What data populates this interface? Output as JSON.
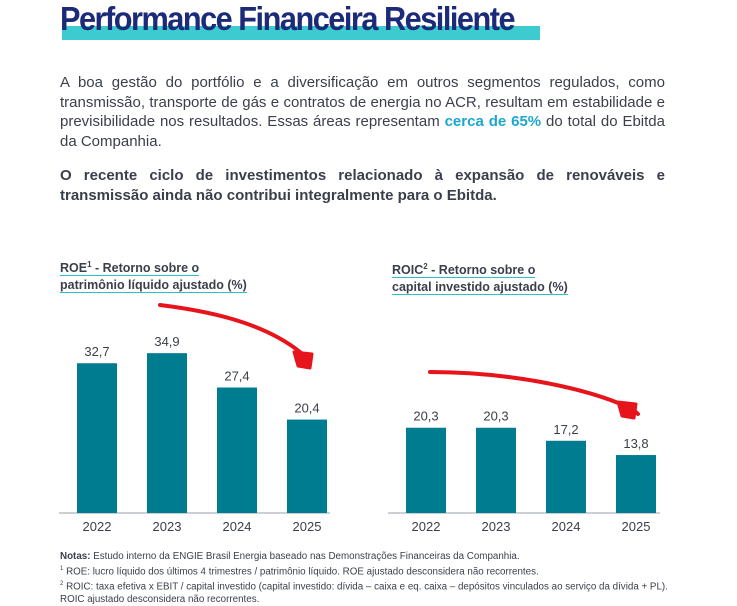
{
  "header": {
    "title": "Performance Financeira Resiliente"
  },
  "body": {
    "paragraph1_a": "A boa gestão do portfólio e a diversificação em outros segmentos regulados, como transmissão, transporte de gás e contratos de energia no ACR, resultam em estabilidade e previsibilidade nos resultados. Essas áreas representam ",
    "paragraph1_highlight": "cerca de 65%",
    "paragraph1_b": " do total do Ebitda da Companhia.",
    "paragraph2": "O recente ciclo de investimentos relacionado à expansão de renováveis e transmissão ainda não contribui integralmente para o Ebitda."
  },
  "chart_data": [
    {
      "type": "bar",
      "title_main": "ROE",
      "title_sup": "1",
      "title_line1_rest": " - Retorno sobre o",
      "title_line2": "patrimônio líquido ajustado (%)",
      "categories": [
        "2022",
        "2023",
        "2024",
        "2025"
      ],
      "values": [
        32.7,
        34.9,
        27.4,
        20.4
      ],
      "labels": [
        "32,7",
        "34,9",
        "27,4",
        "20,4"
      ],
      "bar_color": "#007c91",
      "annotation_color": "#e8141c"
    },
    {
      "type": "bar",
      "title_main": "ROIC",
      "title_sup": "2",
      "title_line1_rest": " - Retorno sobre o",
      "title_line2": "capital investido ajustado (%)",
      "categories": [
        "2022",
        "2023",
        "2024",
        "2025"
      ],
      "values": [
        20.3,
        20.3,
        17.2,
        13.8
      ],
      "labels": [
        "20,3",
        "20,3",
        "17,2",
        "13,8"
      ],
      "bar_color": "#007c91",
      "annotation_color": "#e8141c"
    }
  ],
  "notes": {
    "label": "Notas:",
    "line0": " Estudo interno da ENGIE Brasil Energia baseado nas Demonstrações Financeiras da Companhia.",
    "sup1": "1",
    "line1": " ROE: lucro líquido dos últimos 4 trimestres / patrimônio líquido. ROE ajustado desconsidera não recorrentes.",
    "sup2": "2",
    "line2": " ROIC: taxa efetiva x EBIT / capital investido (capital investido: dívida – caixa e eq. caixa – depósitos vinculados ao serviço da dívida + PL). ROIC ajustado desconsidera não recorrentes."
  }
}
